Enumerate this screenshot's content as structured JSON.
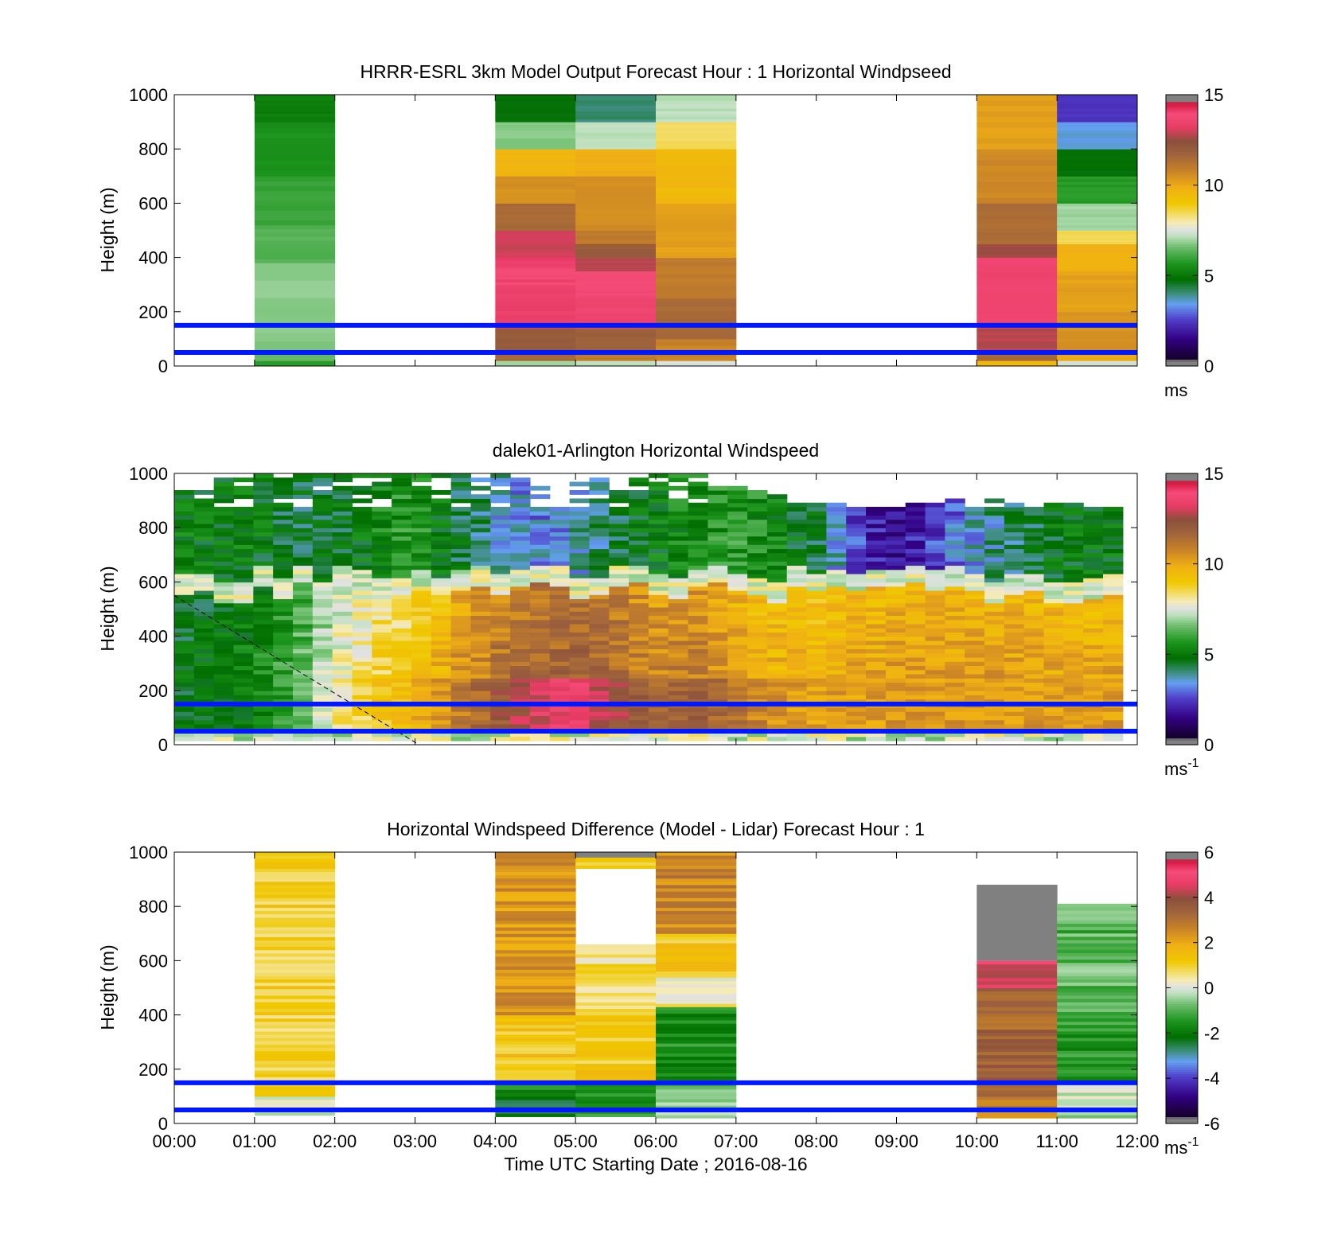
{
  "figure": {
    "xlabel": "Time UTC  Starting Date ; 2016-08-16",
    "x_ticks": [
      "00:00",
      "01:00",
      "02:00",
      "03:00",
      "04:00",
      "05:00",
      "06:00",
      "07:00",
      "08:00",
      "09:00",
      "10:00",
      "11:00",
      "12:00"
    ],
    "hub_lines_m": [
      50,
      150
    ],
    "colors": {
      "hub_line": "#0018ff",
      "grid_frame": "#000000",
      "nan_gray": "#808080"
    }
  },
  "chart_data": [
    {
      "type": "heatmap",
      "title": "HRRR-ESRL 3km Model Output   Forecast Hour : 1 Horizontal Windpseed",
      "ylabel": "Height (m)",
      "ylim": [
        0,
        1000
      ],
      "y_ticks": [
        "0",
        "200",
        "400",
        "600",
        "800",
        "1000"
      ],
      "cbar": {
        "min": 0,
        "max": 15,
        "ticks": [
          "0",
          "5",
          "10",
          "15"
        ],
        "unit": "ms"
      },
      "columns": [
        {
          "hour": 1,
          "bins": [
            [
              0,
              20,
              5.8
            ],
            [
              20,
              60,
              6.5
            ],
            [
              60,
              380,
              6.8
            ],
            [
              380,
              520,
              6.3
            ],
            [
              520,
              700,
              6.0
            ],
            [
              700,
              900,
              5.6
            ],
            [
              900,
              1000,
              5.2
            ]
          ]
        },
        {
          "hour": 4,
          "bins": [
            [
              0,
              20,
              7.0
            ],
            [
              20,
              60,
              11.5
            ],
            [
              60,
              140,
              12.0
            ],
            [
              140,
              300,
              13.4
            ],
            [
              300,
              400,
              14.0
            ],
            [
              400,
              500,
              13.0
            ],
            [
              500,
              600,
              11.5
            ],
            [
              600,
              700,
              10.5
            ],
            [
              700,
              800,
              9.7
            ],
            [
              800,
              900,
              6.8
            ],
            [
              900,
              1000,
              4.8
            ]
          ]
        },
        {
          "hour": 5,
          "bins": [
            [
              0,
              20,
              7.2
            ],
            [
              20,
              60,
              11.0
            ],
            [
              60,
              140,
              11.8
            ],
            [
              140,
              250,
              13.6
            ],
            [
              250,
              350,
              13.8
            ],
            [
              350,
              400,
              12.8
            ],
            [
              400,
              450,
              12.0
            ],
            [
              450,
              500,
              11.0
            ],
            [
              500,
              700,
              10.6
            ],
            [
              700,
              800,
              9.9
            ],
            [
              800,
              900,
              7.2
            ],
            [
              900,
              1000,
              4.1
            ]
          ]
        },
        {
          "hour": 6,
          "bins": [
            [
              0,
              20,
              7.5
            ],
            [
              20,
              100,
              10.8
            ],
            [
              100,
              250,
              11.5
            ],
            [
              250,
              400,
              11.0
            ],
            [
              400,
              600,
              10.2
            ],
            [
              600,
              800,
              9.6
            ],
            [
              800,
              900,
              8.5
            ],
            [
              900,
              1000,
              7.2
            ]
          ]
        },
        {
          "hour": 10,
          "bins": [
            [
              0,
              20,
              9.6
            ],
            [
              20,
              60,
              11.6
            ],
            [
              60,
              140,
              12.8
            ],
            [
              140,
              400,
              13.6
            ],
            [
              400,
              450,
              12.6
            ],
            [
              450,
              600,
              11.4
            ],
            [
              600,
              800,
              10.7
            ],
            [
              800,
              1000,
              10.2
            ]
          ]
        },
        {
          "hour": 11,
          "bins": [
            [
              0,
              20,
              7.4
            ],
            [
              20,
              60,
              10.0
            ],
            [
              60,
              200,
              10.5
            ],
            [
              200,
              350,
              10.2
            ],
            [
              350,
              450,
              9.8
            ],
            [
              450,
              500,
              8.5
            ],
            [
              500,
              600,
              7.0
            ],
            [
              600,
              700,
              5.8
            ],
            [
              700,
              800,
              4.8
            ],
            [
              800,
              900,
              3.5
            ],
            [
              900,
              1000,
              2.4
            ]
          ]
        }
      ]
    },
    {
      "type": "heatmap",
      "title": "dalek01-Arlington  Horizontal Windspeed",
      "ylabel": "Height (m)",
      "ylim": [
        0,
        1000
      ],
      "y_ticks": [
        "0",
        "200",
        "400",
        "600",
        "800",
        "1000"
      ],
      "cbar": {
        "min": 0,
        "max": 15,
        "ticks": [
          "0",
          "5",
          "10",
          "15"
        ],
        "unit": "ms",
        "unit_exp": "-1"
      },
      "diagonal_line": {
        "x0_hour": 0,
        "y0": 550,
        "x1_hour": 3.05,
        "y1": 0
      },
      "profiles": [
        {
          "t": 0.0,
          "low": 4.6,
          "mid": 4.8,
          "top": 5.0,
          "top_h": 940
        },
        {
          "t": 1.0,
          "low": 5.2,
          "mid": 5.5,
          "top": 5.0,
          "top_h": 1000
        },
        {
          "t": 1.5,
          "low": 6.0,
          "mid": 6.2,
          "top": 4.5,
          "top_h": 1000
        },
        {
          "t": 2.0,
          "low": 8.0,
          "mid": 7.8,
          "top": 4.6,
          "top_h": 1000
        },
        {
          "t": 2.5,
          "low": 9.0,
          "mid": 8.6,
          "top": 5.2,
          "top_h": 1000
        },
        {
          "t": 3.0,
          "low": 9.6,
          "mid": 9.0,
          "top": 5.8,
          "top_h": 1000
        },
        {
          "t": 3.5,
          "low": 10.8,
          "mid": 10.3,
          "top": 4.6,
          "top_h": 1000
        },
        {
          "t": 4.0,
          "low": 12.0,
          "mid": 11.2,
          "top": 3.8,
          "top_h": 1000
        },
        {
          "t": 4.5,
          "low": 13.2,
          "mid": 11.6,
          "top": 3.2,
          "top_h": 980
        },
        {
          "t": 5.0,
          "low": 13.8,
          "mid": 11.8,
          "top": 3.6,
          "top_h": 970
        },
        {
          "t": 5.5,
          "low": 12.6,
          "mid": 11.4,
          "top": 4.5,
          "top_h": 1000
        },
        {
          "t": 6.0,
          "low": 11.4,
          "mid": 10.8,
          "top": 5.0,
          "top_h": 1000
        },
        {
          "t": 6.5,
          "low": 11.8,
          "mid": 11.0,
          "top": 5.4,
          "top_h": 1000
        },
        {
          "t": 7.0,
          "low": 11.2,
          "mid": 10.2,
          "top": 5.8,
          "top_h": 950
        },
        {
          "t": 7.5,
          "low": 10.4,
          "mid": 9.8,
          "top": 5.2,
          "top_h": 920
        },
        {
          "t": 8.0,
          "low": 10.2,
          "mid": 9.8,
          "top": 4.5,
          "top_h": 900
        },
        {
          "t": 8.5,
          "low": 10.2,
          "mid": 10.0,
          "top": 2.6,
          "top_h": 880
        },
        {
          "t": 9.0,
          "low": 10.3,
          "mid": 10.2,
          "top": 1.6,
          "top_h": 880
        },
        {
          "t": 9.5,
          "low": 10.3,
          "mid": 10.2,
          "top": 2.6,
          "top_h": 900
        },
        {
          "t": 10.0,
          "low": 10.3,
          "mid": 10.2,
          "top": 3.6,
          "top_h": 910
        },
        {
          "t": 10.5,
          "low": 10.3,
          "mid": 10.1,
          "top": 4.2,
          "top_h": 900
        },
        {
          "t": 11.0,
          "low": 10.2,
          "mid": 10.0,
          "top": 4.8,
          "top_h": 890
        },
        {
          "t": 11.6,
          "low": 10.2,
          "mid": 10.0,
          "top": 5.0,
          "top_h": 880
        }
      ],
      "data_end_hour": 11.82
    },
    {
      "type": "heatmap",
      "title": "Horizontal Windspeed Difference (Model - Lidar) Forecast Hour : 1",
      "ylabel": "Height (m)",
      "ylim": [
        0,
        1000
      ],
      "y_ticks": [
        "0",
        "200",
        "400",
        "600",
        "800",
        "1000"
      ],
      "cbar": {
        "min": -6,
        "max": 6,
        "ticks": [
          "-6",
          "-4",
          "-2",
          "0",
          "2",
          "4",
          "6"
        ],
        "unit": "ms",
        "unit_exp": "-1"
      },
      "columns": [
        {
          "hour": 1,
          "top_h": 1000,
          "bins": [
            [
              30,
              100,
              0.1
            ],
            [
              100,
              1000,
              1.0
            ]
          ],
          "gray_bins": []
        },
        {
          "hour": 4,
          "top_h": 1000,
          "bins": [
            [
              25,
              100,
              -2.2
            ],
            [
              100,
              150,
              -1.5
            ],
            [
              150,
              400,
              1.3
            ],
            [
              400,
              1000,
              2.3
            ]
          ],
          "gray_bins": []
        },
        {
          "hour": 5,
          "top_h": 660,
          "bins": [
            [
              25,
              150,
              -1.3
            ],
            [
              150,
              400,
              1.2
            ],
            [
              400,
              660,
              0.7
            ],
            [
              940,
              1000,
              1.0
            ]
          ],
          "gray_bins": [
            [
              980,
              1000
            ]
          ]
        },
        {
          "hour": 6,
          "top_h": 1000,
          "bins": [
            [
              20,
              150,
              -0.6
            ],
            [
              150,
              430,
              -1.6
            ],
            [
              430,
              550,
              0.4
            ],
            [
              550,
              700,
              1.3
            ],
            [
              700,
              1000,
              2.6
            ]
          ],
          "gray_bins": []
        },
        {
          "hour": 10,
          "top_h": 880,
          "bins": [
            [
              20,
              100,
              2.5
            ],
            [
              100,
              300,
              3.6
            ],
            [
              300,
              500,
              3.3
            ],
            [
              500,
              600,
              4.6
            ]
          ],
          "gray_bins": [
            [
              600,
              880
            ]
          ]
        },
        {
          "hour": 11,
          "top_h": 810,
          "bins": [
            [
              20,
              150,
              -0.3
            ],
            [
              150,
              400,
              -1.4
            ],
            [
              400,
              810,
              -0.9
            ]
          ],
          "gray_bins": []
        }
      ]
    }
  ]
}
